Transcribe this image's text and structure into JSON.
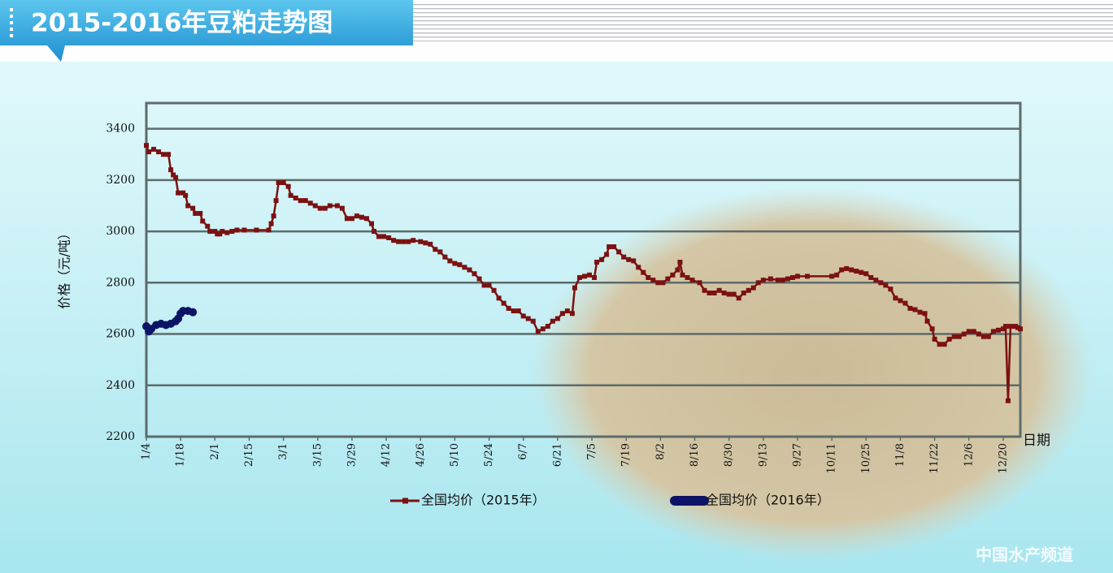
{
  "chart_data": {
    "type": "line",
    "title": "2015-2016年豆粕走势图",
    "y_label": "价格（元/吨）",
    "x_label": "日期",
    "watermark": "中国水产频道",
    "ylim": [
      2200,
      3500
    ],
    "yticks": [
      2200,
      2400,
      2600,
      2800,
      3000,
      3200,
      3400
    ],
    "grid": true,
    "xlim": [
      0,
      357
    ],
    "xticks": [
      {
        "value": 0,
        "label": "1/4"
      },
      {
        "value": 14,
        "label": "1/18"
      },
      {
        "value": 28,
        "label": "2/1"
      },
      {
        "value": 42,
        "label": "2/15"
      },
      {
        "value": 56,
        "label": "3/1"
      },
      {
        "value": 70,
        "label": "3/15"
      },
      {
        "value": 84,
        "label": "3/29"
      },
      {
        "value": 98,
        "label": "4/12"
      },
      {
        "value": 112,
        "label": "4/26"
      },
      {
        "value": 126,
        "label": "5/10"
      },
      {
        "value": 140,
        "label": "5/24"
      },
      {
        "value": 154,
        "label": "6/7"
      },
      {
        "value": 168,
        "label": "6/21"
      },
      {
        "value": 182,
        "label": "7/5"
      },
      {
        "value": 196,
        "label": "7/19"
      },
      {
        "value": 210,
        "label": "8/2"
      },
      {
        "value": 224,
        "label": "8/16"
      },
      {
        "value": 238,
        "label": "8/30"
      },
      {
        "value": 252,
        "label": "9/13"
      },
      {
        "value": 266,
        "label": "9/27"
      },
      {
        "value": 280,
        "label": "10/11"
      },
      {
        "value": 294,
        "label": "10/25"
      },
      {
        "value": 308,
        "label": "11/8"
      },
      {
        "value": 322,
        "label": "11/22"
      },
      {
        "value": 336,
        "label": "12/6"
      },
      {
        "value": 350,
        "label": "12/20"
      }
    ],
    "series": [
      {
        "name": "全国均价（2015年）",
        "color": "#7b1111",
        "x": [
          0,
          1,
          3,
          5,
          7,
          9,
          10,
          11,
          12,
          13,
          15,
          16,
          17,
          19,
          20,
          22,
          23,
          25,
          26,
          28,
          29,
          30,
          31,
          33,
          35,
          37,
          40,
          45,
          50,
          51,
          52,
          53,
          54,
          56,
          58,
          59,
          61,
          63,
          65,
          67,
          69,
          71,
          73,
          75,
          78,
          80,
          82,
          84,
          86,
          88,
          90,
          92,
          93,
          95,
          97,
          99,
          101,
          103,
          105,
          107,
          109,
          112,
          114,
          116,
          118,
          120,
          122,
          124,
          126,
          128,
          130,
          132,
          134,
          136,
          138,
          140,
          142,
          144,
          146,
          148,
          150,
          152,
          154,
          156,
          158,
          160,
          162,
          164,
          166,
          168,
          170,
          172,
          174,
          175,
          177,
          179,
          181,
          183,
          184,
          186,
          188,
          189,
          191,
          193,
          195,
          197,
          199,
          201,
          203,
          205,
          207,
          209,
          211,
          213,
          215,
          217,
          218,
          219,
          221,
          223,
          226,
          228,
          230,
          232,
          234,
          236,
          238,
          240,
          242,
          244,
          246,
          248,
          250,
          252,
          255,
          258,
          260,
          262,
          264,
          266,
          270,
          280,
          282,
          284,
          286,
          288,
          290,
          292,
          294,
          296,
          298,
          300,
          302,
          304,
          306,
          308,
          310,
          312,
          314,
          316,
          318,
          319,
          321,
          322,
          324,
          326,
          328,
          330,
          332,
          334,
          336,
          338,
          340,
          342,
          344,
          346,
          348,
          350,
          351,
          352,
          353,
          355,
          356,
          357
        ],
        "values": [
          3335,
          3310,
          3320,
          3310,
          3300,
          3300,
          3240,
          3220,
          3210,
          3150,
          3150,
          3140,
          3100,
          3090,
          3070,
          3070,
          3040,
          3020,
          3000,
          3000,
          2990,
          2990,
          3000,
          2995,
          3000,
          3005,
          3005,
          3005,
          3005,
          3030,
          3060,
          3120,
          3190,
          3190,
          3175,
          3140,
          3130,
          3120,
          3120,
          3110,
          3100,
          3090,
          3090,
          3100,
          3100,
          3090,
          3050,
          3050,
          3060,
          3055,
          3050,
          3030,
          3000,
          2980,
          2980,
          2975,
          2965,
          2960,
          2960,
          2960,
          2965,
          2960,
          2955,
          2950,
          2930,
          2920,
          2900,
          2885,
          2875,
          2870,
          2860,
          2850,
          2835,
          2815,
          2790,
          2790,
          2770,
          2740,
          2720,
          2700,
          2690,
          2690,
          2670,
          2660,
          2650,
          2610,
          2620,
          2630,
          2650,
          2660,
          2680,
          2690,
          2680,
          2780,
          2820,
          2825,
          2830,
          2820,
          2880,
          2890,
          2910,
          2940,
          2940,
          2920,
          2900,
          2890,
          2885,
          2860,
          2840,
          2820,
          2810,
          2800,
          2800,
          2815,
          2830,
          2850,
          2880,
          2830,
          2820,
          2810,
          2800,
          2770,
          2760,
          2760,
          2770,
          2760,
          2755,
          2755,
          2740,
          2760,
          2770,
          2780,
          2800,
          2810,
          2815,
          2810,
          2810,
          2815,
          2820,
          2825,
          2825,
          2825,
          2830,
          2850,
          2855,
          2850,
          2845,
          2840,
          2835,
          2820,
          2810,
          2800,
          2790,
          2775,
          2740,
          2730,
          2720,
          2700,
          2695,
          2685,
          2680,
          2650,
          2620,
          2580,
          2560,
          2560,
          2580,
          2590,
          2590,
          2600,
          2610,
          2610,
          2600,
          2590,
          2590,
          2610,
          2615,
          2620,
          2630,
          2340,
          2630,
          2630,
          2625,
          2620
        ]
      },
      {
        "name": "全国均价（2016年）",
        "color": "#0d1466",
        "x": [
          0,
          1,
          2,
          4,
          6,
          8,
          10,
          12,
          13,
          14,
          15,
          17,
          19
        ],
        "values": [
          2630,
          2610,
          2620,
          2635,
          2640,
          2635,
          2640,
          2650,
          2660,
          2680,
          2690,
          2690,
          2685
        ]
      }
    ]
  }
}
